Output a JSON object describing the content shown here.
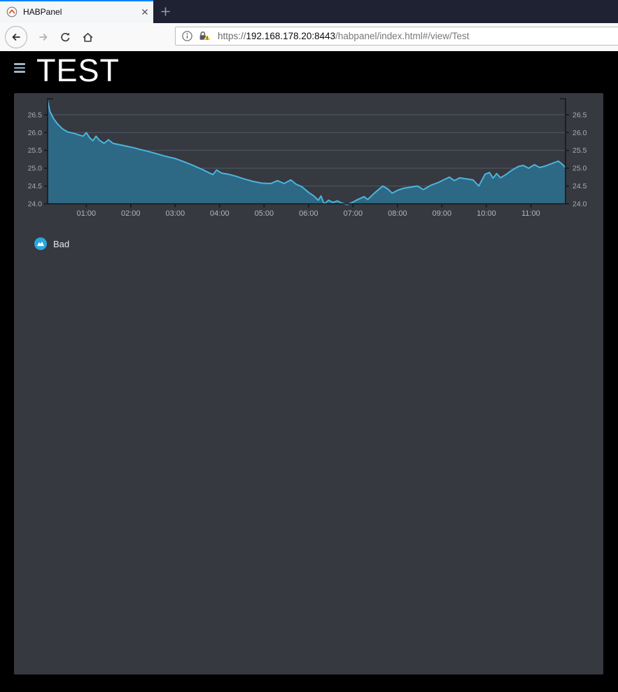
{
  "browser": {
    "tab_title": "HABPanel",
    "url": {
      "protocol": "https://",
      "host": "192.168.178.20:8443",
      "path": "/habpanel/index.html#/view/Test"
    }
  },
  "app": {
    "title": "TEST",
    "legend": {
      "label": "Bad",
      "icon_color": "#2ba7dd"
    }
  },
  "chart_data": {
    "type": "area",
    "title": "",
    "xlabel": "",
    "ylabel": "",
    "legend_entries": [
      "Bad"
    ],
    "grid": "horizontal",
    "xlim": [
      0.13,
      11.78
    ],
    "ylim": [
      24.0,
      26.95
    ],
    "x_unit": "time-of-day-hours",
    "x_ticks": [
      {
        "t": 1,
        "label": "01:00"
      },
      {
        "t": 2,
        "label": "02:00"
      },
      {
        "t": 3,
        "label": "03:00"
      },
      {
        "t": 4,
        "label": "04:00"
      },
      {
        "t": 5,
        "label": "05:00"
      },
      {
        "t": 6,
        "label": "06:00"
      },
      {
        "t": 7,
        "label": "07:00"
      },
      {
        "t": 8,
        "label": "08:00"
      },
      {
        "t": 9,
        "label": "09:00"
      },
      {
        "t": 10,
        "label": "10:00"
      },
      {
        "t": 11,
        "label": "11:00"
      }
    ],
    "y_ticks": [
      {
        "v": 24.0,
        "label": "24.0"
      },
      {
        "v": 24.5,
        "label": "24.5"
      },
      {
        "v": 25.0,
        "label": "25.0"
      },
      {
        "v": 25.5,
        "label": "25.5"
      },
      {
        "v": 26.0,
        "label": "26.0"
      },
      {
        "v": 26.5,
        "label": "26.5"
      }
    ],
    "series": [
      {
        "name": "Bad",
        "points": [
          [
            0.13,
            26.92
          ],
          [
            0.18,
            26.6
          ],
          [
            0.27,
            26.38
          ],
          [
            0.37,
            26.22
          ],
          [
            0.47,
            26.1
          ],
          [
            0.58,
            26.02
          ],
          [
            0.72,
            25.98
          ],
          [
            0.85,
            25.93
          ],
          [
            0.93,
            25.9
          ],
          [
            1.0,
            26.0
          ],
          [
            1.08,
            25.85
          ],
          [
            1.15,
            25.77
          ],
          [
            1.22,
            25.9
          ],
          [
            1.3,
            25.78
          ],
          [
            1.4,
            25.7
          ],
          [
            1.5,
            25.8
          ],
          [
            1.6,
            25.7
          ],
          [
            1.75,
            25.66
          ],
          [
            1.9,
            25.62
          ],
          [
            2.05,
            25.58
          ],
          [
            2.2,
            25.53
          ],
          [
            2.4,
            25.47
          ],
          [
            2.6,
            25.4
          ],
          [
            2.8,
            25.33
          ],
          [
            3.0,
            25.27
          ],
          [
            3.2,
            25.18
          ],
          [
            3.4,
            25.08
          ],
          [
            3.6,
            24.97
          ],
          [
            3.75,
            24.88
          ],
          [
            3.85,
            24.82
          ],
          [
            3.93,
            24.95
          ],
          [
            4.05,
            24.86
          ],
          [
            4.2,
            24.83
          ],
          [
            4.35,
            24.78
          ],
          [
            4.55,
            24.7
          ],
          [
            4.75,
            24.63
          ],
          [
            4.95,
            24.58
          ],
          [
            5.15,
            24.57
          ],
          [
            5.3,
            24.65
          ],
          [
            5.45,
            24.57
          ],
          [
            5.6,
            24.67
          ],
          [
            5.72,
            24.55
          ],
          [
            5.85,
            24.48
          ],
          [
            6.0,
            24.32
          ],
          [
            6.12,
            24.22
          ],
          [
            6.22,
            24.1
          ],
          [
            6.28,
            24.22
          ],
          [
            6.35,
            24.0
          ],
          [
            6.45,
            24.1
          ],
          [
            6.55,
            24.04
          ],
          [
            6.65,
            24.08
          ],
          [
            6.75,
            24.02
          ],
          [
            6.87,
            23.98
          ],
          [
            7.0,
            24.05
          ],
          [
            7.12,
            24.13
          ],
          [
            7.25,
            24.2
          ],
          [
            7.33,
            24.12
          ],
          [
            7.5,
            24.32
          ],
          [
            7.67,
            24.5
          ],
          [
            7.78,
            24.42
          ],
          [
            7.88,
            24.3
          ],
          [
            8.0,
            24.38
          ],
          [
            8.15,
            24.44
          ],
          [
            8.3,
            24.47
          ],
          [
            8.45,
            24.5
          ],
          [
            8.58,
            24.4
          ],
          [
            8.75,
            24.52
          ],
          [
            8.92,
            24.6
          ],
          [
            9.05,
            24.68
          ],
          [
            9.17,
            24.75
          ],
          [
            9.28,
            24.65
          ],
          [
            9.4,
            24.73
          ],
          [
            9.55,
            24.7
          ],
          [
            9.7,
            24.67
          ],
          [
            9.83,
            24.5
          ],
          [
            9.97,
            24.83
          ],
          [
            10.07,
            24.88
          ],
          [
            10.15,
            24.72
          ],
          [
            10.23,
            24.85
          ],
          [
            10.32,
            24.73
          ],
          [
            10.45,
            24.83
          ],
          [
            10.58,
            24.95
          ],
          [
            10.72,
            25.05
          ],
          [
            10.83,
            25.08
          ],
          [
            10.95,
            25.0
          ],
          [
            11.08,
            25.1
          ],
          [
            11.2,
            25.02
          ],
          [
            11.32,
            25.06
          ],
          [
            11.45,
            25.12
          ],
          [
            11.62,
            25.2
          ],
          [
            11.7,
            25.12
          ],
          [
            11.78,
            25.02
          ]
        ]
      }
    ],
    "colors": {
      "line": "#4cb4de",
      "fill": "#2c6e8c",
      "fill_opacity": 0.9,
      "axis": "#16181c",
      "grid": "#55657c",
      "y_label": "#a9afb6",
      "x_label": "#b3b8be",
      "panel_bg": "#36393f"
    }
  }
}
